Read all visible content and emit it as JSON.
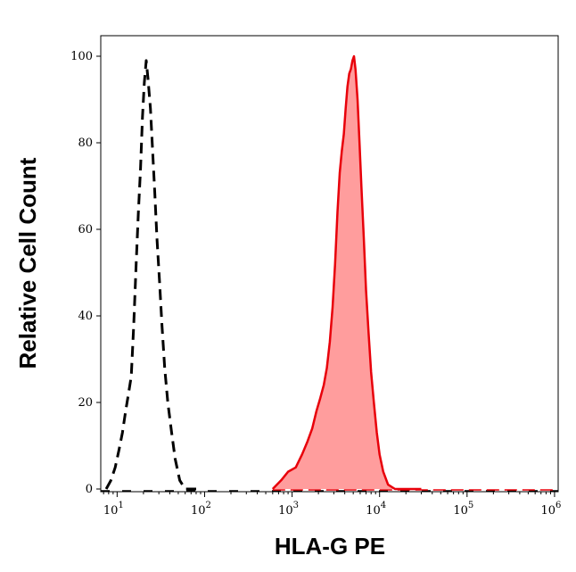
{
  "chart_data": {
    "type": "area",
    "xlabel": "HLA-G PE",
    "ylabel": "Relative Cell Count",
    "x_scale": "log",
    "xlim": [
      6.5,
      1100000
    ],
    "ylim": [
      0,
      105
    ],
    "y_ticks": [
      0,
      20,
      40,
      60,
      80,
      100
    ],
    "x_ticks": [
      {
        "value": 10,
        "base": "10",
        "exp": "1"
      },
      {
        "value": 100,
        "base": "10",
        "exp": "2"
      },
      {
        "value": 1000,
        "base": "10",
        "exp": "3"
      },
      {
        "value": 10000,
        "base": "10",
        "exp": "4"
      },
      {
        "value": 100000,
        "base": "10",
        "exp": "5"
      },
      {
        "value": 1000000,
        "base": "10",
        "exp": "6"
      }
    ],
    "grid": false,
    "series": [
      {
        "style": "dashed",
        "color": "#000000",
        "fill": "none",
        "points": [
          [
            7.5,
            0
          ],
          [
            8.5,
            2
          ],
          [
            9.5,
            5
          ],
          [
            10.5,
            9
          ],
          [
            11.5,
            13
          ],
          [
            12.5,
            18
          ],
          [
            13.5,
            22
          ],
          [
            14.5,
            26
          ],
          [
            15.5,
            38
          ],
          [
            16.5,
            52
          ],
          [
            17.5,
            64
          ],
          [
            18.5,
            74
          ],
          [
            19.5,
            86
          ],
          [
            20.5,
            94
          ],
          [
            21.5,
            99
          ],
          [
            22.5,
            95
          ],
          [
            24,
            88
          ],
          [
            25.5,
            78
          ],
          [
            27,
            68
          ],
          [
            28.5,
            58
          ],
          [
            30.5,
            48
          ],
          [
            32.5,
            38
          ],
          [
            35,
            28
          ],
          [
            38,
            20
          ],
          [
            42,
            13
          ],
          [
            46,
            7
          ],
          [
            52,
            2
          ],
          [
            60,
            0
          ],
          [
            80,
            0
          ]
        ]
      },
      {
        "style": "solid",
        "color": "#e8000a",
        "fill": "#ff9d9d",
        "points": [
          [
            600,
            0
          ],
          [
            750,
            2
          ],
          [
            900,
            4
          ],
          [
            1100,
            5
          ],
          [
            1300,
            8
          ],
          [
            1500,
            11
          ],
          [
            1700,
            14
          ],
          [
            1900,
            18
          ],
          [
            2100,
            21
          ],
          [
            2300,
            24
          ],
          [
            2500,
            28
          ],
          [
            2700,
            34
          ],
          [
            2900,
            42
          ],
          [
            3100,
            52
          ],
          [
            3300,
            64
          ],
          [
            3500,
            73
          ],
          [
            3700,
            78
          ],
          [
            3900,
            82
          ],
          [
            4100,
            88
          ],
          [
            4300,
            93
          ],
          [
            4500,
            96
          ],
          [
            4700,
            97
          ],
          [
            4900,
            99
          ],
          [
            5100,
            100
          ],
          [
            5300,
            97
          ],
          [
            5600,
            90
          ],
          [
            5900,
            80
          ],
          [
            6200,
            70
          ],
          [
            6600,
            58
          ],
          [
            7000,
            46
          ],
          [
            7500,
            36
          ],
          [
            8000,
            27
          ],
          [
            8600,
            20
          ],
          [
            9300,
            13
          ],
          [
            10000,
            8
          ],
          [
            11000,
            4
          ],
          [
            12500,
            1
          ],
          [
            15000,
            0
          ],
          [
            30000,
            0
          ]
        ]
      }
    ]
  }
}
